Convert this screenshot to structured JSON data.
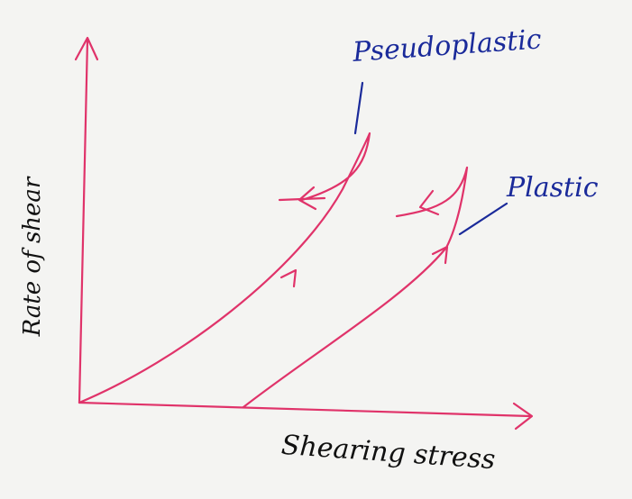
{
  "labels": {
    "pseudoplastic": "Pseudoplastic",
    "plastic": "Plastic"
  },
  "axes": {
    "y": "Rate of shear",
    "x": "Shearing stress"
  }
}
